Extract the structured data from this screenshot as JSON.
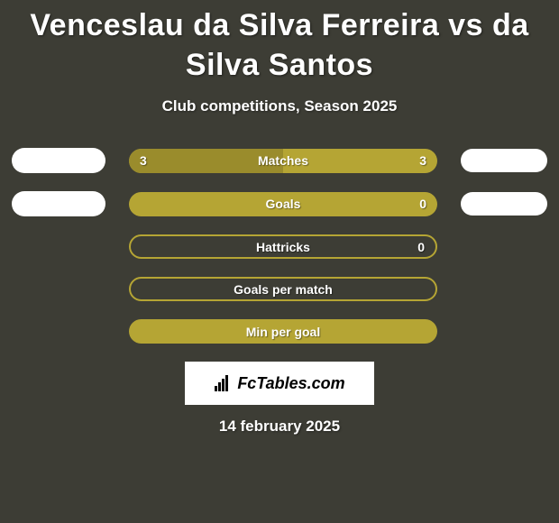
{
  "background_color": "#3d3d35",
  "accent_color": "#b5a534",
  "badge_color": "#ffffff",
  "text_color": "#ffffff",
  "title": "Venceslau da Silva Ferreira vs da Silva Santos",
  "title_fontsize": 34,
  "subtitle": "Club competitions, Season 2025",
  "subtitle_fontsize": 17,
  "stats": [
    {
      "label": "Matches",
      "left_value": "3",
      "right_value": "3",
      "left_pct": 50,
      "mode": "filled",
      "has_badges": true
    },
    {
      "label": "Goals",
      "left_value": "",
      "right_value": "0",
      "left_pct": 0,
      "mode": "filled",
      "has_badges": true
    },
    {
      "label": "Hattricks",
      "left_value": "",
      "right_value": "0",
      "left_pct": 0,
      "mode": "bordered",
      "has_badges": false
    },
    {
      "label": "Goals per match",
      "left_value": "",
      "right_value": "",
      "left_pct": 0,
      "mode": "bordered",
      "has_badges": false
    },
    {
      "label": "Min per goal",
      "left_value": "",
      "right_value": "",
      "left_pct": 0,
      "mode": "filled",
      "has_badges": false
    }
  ],
  "footer_brand_icon": "bar-chart-icon",
  "footer_brand_text": "FcTables.com",
  "date_text": "14 february 2025"
}
